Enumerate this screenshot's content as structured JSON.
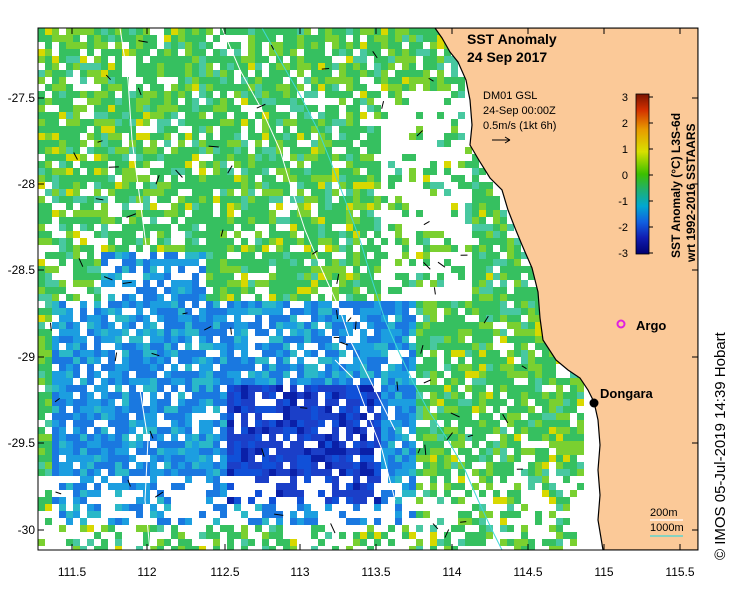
{
  "title": "SST Anomaly",
  "date": "24 Sep 2017",
  "wind_panel": {
    "line1": "DM01 GSL",
    "line2": "24-Sep 00:00Z",
    "line3": "0.5m/s (1kt 6h)"
  },
  "colorbar": {
    "label1": "SST Anomaly (°C) L3S-6d",
    "label2": "wrt 1992-2016 SSTAARS",
    "ticks": [
      "3",
      "2",
      "1",
      "0",
      "-1",
      "-2",
      "-3"
    ],
    "colors": [
      "#7a1400",
      "#d33000",
      "#e89a00",
      "#d8e000",
      "#3cc000",
      "#1fb070",
      "#00a8d0",
      "#1060e0",
      "#101cb0",
      "#000070"
    ]
  },
  "places": {
    "argo": "Argo",
    "dongara": "Dongara"
  },
  "contour_legend": {
    "depth1": "200m",
    "depth2": "1000m"
  },
  "axes": {
    "y_ticks": [
      "-27.5",
      "-28",
      "-28.5",
      "-29",
      "-29.5",
      "-30"
    ],
    "x_ticks": [
      "111.5",
      "112",
      "112.5",
      "113",
      "113.5",
      "114",
      "114.5",
      "115",
      "115.5"
    ]
  },
  "credit": "© IMOS 05-Jul-2019 14:39 Hobart",
  "colors": {
    "land": "#fbc998",
    "ocean_nodata": "#ffffff",
    "argo_marker": "#e020e0",
    "contour_200m": "#ffffff",
    "contour_1000m": "#40d8d8"
  }
}
